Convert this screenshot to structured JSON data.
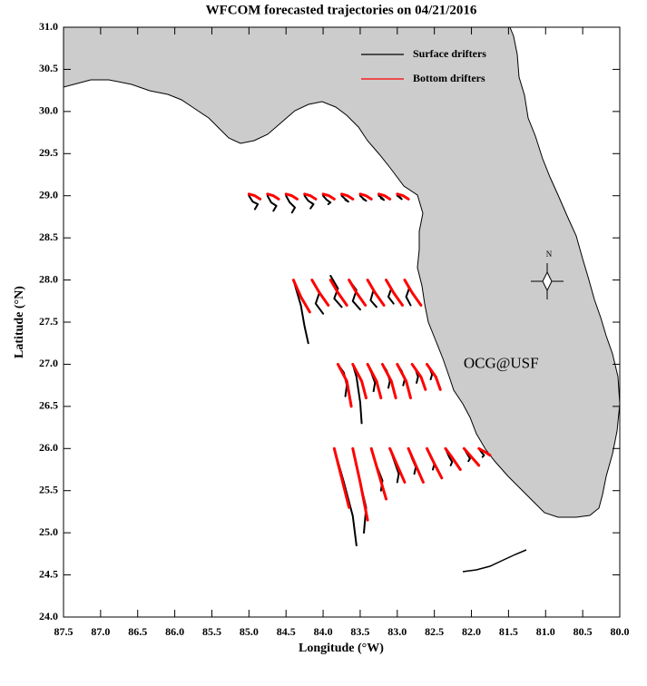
{
  "chart_data": {
    "type": "trajectory",
    "title": "WFCOM forecasted trajectories on 04/21/2016",
    "xlabel": "Longitude (°W)",
    "ylabel": "Latitude (°N)",
    "xlim": [
      87.5,
      80.0
    ],
    "ylim": [
      24.0,
      31.0
    ],
    "xticks": [
      87.5,
      {
        "value": 87,
        "label": "87.0"
      },
      86.5,
      {
        "value": 86,
        "label": "86.0"
      },
      85.5,
      {
        "value": 85,
        "label": "85.0"
      },
      84.5,
      {
        "value": 84,
        "label": "84.0"
      },
      83.5,
      {
        "value": 83,
        "label": "83.0"
      },
      82.5,
      {
        "value": 82,
        "label": "82.0"
      },
      81.5,
      {
        "value": 81,
        "label": "81.0"
      },
      80.5,
      {
        "value": 80,
        "label": "80.0"
      }
    ],
    "yticks": [
      {
        "value": 24,
        "label": "24.0"
      },
      24.5,
      {
        "value": 25,
        "label": "25.0"
      },
      25.5,
      {
        "value": 26,
        "label": "26.0"
      },
      26.5,
      {
        "value": 27,
        "label": "27.0"
      },
      27.5,
      {
        "value": 28,
        "label": "28.0"
      },
      28.5,
      {
        "value": 29,
        "label": "29.0"
      },
      29.5,
      {
        "value": 30,
        "label": "30.0"
      },
      30.5,
      {
        "value": 31,
        "label": "31.0"
      }
    ],
    "grid": false,
    "legend": "upper right",
    "compass_label": "N",
    "annotations": [
      {
        "text": "OCG@USF",
        "color": "#ff0000",
        "x": 81.6,
        "y": 27.0
      }
    ],
    "series": [
      {
        "name": "Surface drifters",
        "color": "#000000",
        "width": 2,
        "x": [
          85.0,
          84.95,
          84.88,
          84.92,
          null,
          84.75,
          84.7,
          84.63,
          84.67,
          null,
          84.5,
          84.45,
          84.38,
          84.42,
          null,
          84.25,
          84.2,
          84.13,
          84.17,
          null,
          84.0,
          83.95,
          83.9,
          83.93,
          null,
          83.75,
          83.7,
          83.66,
          83.7,
          null,
          83.5,
          83.45,
          83.42,
          83.46,
          null,
          83.25,
          83.2,
          83.18,
          83.22,
          null,
          83.0,
          82.96,
          82.94,
          82.97,
          null,
          84.4,
          84.3,
          84.25,
          84.2,
          null,
          84.15,
          84.05,
          84.1,
          84.0,
          null,
          83.9,
          83.8,
          83.85,
          83.75,
          null,
          83.65,
          83.55,
          83.6,
          83.5,
          null,
          83.4,
          83.32,
          83.36,
          83.28,
          null,
          83.15,
          83.08,
          83.12,
          83.05,
          null,
          82.9,
          82.84,
          82.88,
          82.82,
          null,
          83.8,
          83.72,
          83.68,
          83.7,
          null,
          83.6,
          83.55,
          83.5,
          83.48,
          null,
          83.4,
          83.35,
          83.3,
          83.32,
          null,
          83.2,
          83.14,
          83.1,
          83.12,
          null,
          83.0,
          82.94,
          82.9,
          82.92,
          null,
          82.8,
          82.75,
          82.72,
          82.74,
          null,
          82.6,
          82.56,
          82.53,
          82.55,
          null,
          83.85,
          83.72,
          83.6,
          83.55,
          null,
          83.6,
          83.5,
          83.42,
          83.45,
          null,
          83.35,
          83.28,
          83.2,
          83.22,
          null,
          83.1,
          83.04,
          82.98,
          83.0,
          null,
          82.85,
          82.8,
          82.75,
          82.77,
          null,
          82.6,
          82.55,
          82.5,
          82.52,
          null,
          82.35,
          82.3,
          82.26,
          82.28,
          null,
          82.1,
          82.06,
          82.02,
          82.04,
          null,
          81.9,
          81.86,
          81.83,
          81.85
        ],
        "values": [
          29.0,
          28.93,
          28.9,
          28.84,
          null,
          29.0,
          28.92,
          28.88,
          28.82,
          null,
          29.0,
          28.92,
          28.86,
          28.8,
          null,
          29.0,
          28.94,
          28.9,
          28.85,
          null,
          29.0,
          28.95,
          28.92,
          28.9,
          null,
          29.0,
          28.96,
          28.93,
          28.95,
          null,
          29.0,
          28.96,
          28.94,
          28.96,
          null,
          29.0,
          28.97,
          28.95,
          28.97,
          null,
          29.0,
          28.98,
          28.96,
          28.98,
          null,
          28.0,
          27.7,
          27.45,
          27.25,
          null,
          28.0,
          27.85,
          27.72,
          27.6,
          null,
          28.05,
          27.9,
          27.78,
          27.68,
          null,
          28.0,
          27.88,
          27.75,
          27.65,
          null,
          28.0,
          27.88,
          27.76,
          27.68,
          null,
          28.0,
          27.9,
          27.8,
          27.72,
          null,
          28.0,
          27.9,
          27.8,
          27.7,
          null,
          27.0,
          26.9,
          26.75,
          26.62,
          null,
          27.0,
          26.85,
          26.55,
          26.3,
          null,
          27.0,
          26.9,
          26.78,
          26.68,
          null,
          27.0,
          26.92,
          26.8,
          26.72,
          null,
          27.0,
          26.92,
          26.82,
          26.75,
          null,
          27.0,
          26.93,
          26.85,
          26.78,
          null,
          27.0,
          26.94,
          26.88,
          26.82,
          null,
          26.0,
          25.6,
          25.2,
          24.85,
          null,
          26.0,
          25.6,
          25.3,
          25.0,
          null,
          26.0,
          25.8,
          25.62,
          25.5,
          null,
          26.0,
          25.85,
          25.7,
          25.6,
          null,
          26.0,
          25.88,
          25.78,
          25.7,
          null,
          26.0,
          25.9,
          25.82,
          25.75,
          null,
          26.0,
          25.9,
          25.84,
          25.8,
          null,
          26.0,
          25.94,
          25.88,
          25.85,
          null,
          26.0,
          25.95,
          25.92,
          25.9
        ]
      },
      {
        "name": "Bottom drifters",
        "color": "#ff0000",
        "width": 3,
        "x": [
          85.0,
          84.92,
          84.85,
          null,
          84.75,
          84.67,
          84.6,
          null,
          84.5,
          84.42,
          84.35,
          null,
          84.25,
          84.17,
          84.1,
          null,
          84.0,
          83.92,
          83.85,
          null,
          83.75,
          83.67,
          83.6,
          null,
          83.5,
          83.42,
          83.35,
          null,
          83.25,
          83.17,
          83.1,
          null,
          83.0,
          82.92,
          82.85,
          null,
          84.4,
          84.3,
          84.18,
          null,
          84.15,
          84.05,
          83.93,
          null,
          83.9,
          83.8,
          83.68,
          null,
          83.65,
          83.55,
          83.43,
          null,
          83.4,
          83.3,
          83.18,
          null,
          83.15,
          83.05,
          82.93,
          null,
          82.9,
          82.8,
          82.68,
          null,
          83.8,
          83.68,
          83.62,
          null,
          83.6,
          83.48,
          83.42,
          null,
          83.4,
          83.28,
          83.22,
          null,
          83.2,
          83.08,
          83.02,
          null,
          83.0,
          82.88,
          82.82,
          null,
          82.8,
          82.68,
          82.62,
          null,
          82.6,
          82.48,
          82.42,
          null,
          83.85,
          83.75,
          83.65,
          null,
          83.6,
          83.5,
          83.4,
          null,
          83.35,
          83.25,
          83.15,
          null,
          83.1,
          83.0,
          82.9,
          null,
          82.85,
          82.75,
          82.65,
          null,
          82.6,
          82.5,
          82.4,
          null,
          82.35,
          82.25,
          82.15,
          null,
          82.1,
          82.0,
          81.9,
          null,
          81.9,
          81.8,
          81.75
        ],
        "values": [
          29.02,
          29.0,
          28.96,
          null,
          29.02,
          29.0,
          28.96,
          null,
          29.02,
          29.0,
          28.96,
          null,
          29.02,
          29.0,
          28.96,
          null,
          29.02,
          29.0,
          28.96,
          null,
          29.02,
          29.0,
          28.96,
          null,
          29.02,
          29.0,
          28.96,
          null,
          29.02,
          29.0,
          28.96,
          null,
          29.02,
          29.0,
          28.96,
          null,
          28.0,
          27.8,
          27.62,
          null,
          28.0,
          27.85,
          27.7,
          null,
          28.0,
          27.85,
          27.7,
          null,
          28.0,
          27.85,
          27.7,
          null,
          28.0,
          27.85,
          27.7,
          null,
          28.0,
          27.85,
          27.7,
          null,
          28.0,
          27.85,
          27.7,
          null,
          27.0,
          26.8,
          26.5,
          null,
          27.0,
          26.8,
          26.6,
          null,
          27.0,
          26.8,
          26.6,
          null,
          27.0,
          26.8,
          26.6,
          null,
          27.0,
          26.8,
          26.6,
          null,
          27.0,
          26.85,
          26.7,
          null,
          27.0,
          26.85,
          26.7,
          null,
          26.0,
          25.65,
          25.3,
          null,
          26.0,
          25.6,
          25.15,
          null,
          26.0,
          25.7,
          25.4,
          null,
          26.0,
          25.8,
          25.6,
          null,
          26.0,
          25.8,
          25.6,
          null,
          26.0,
          25.82,
          25.65,
          null,
          26.0,
          25.88,
          25.75,
          null,
          26.0,
          25.9,
          25.8,
          null,
          26.0,
          25.95,
          25.92
        ]
      }
    ]
  }
}
